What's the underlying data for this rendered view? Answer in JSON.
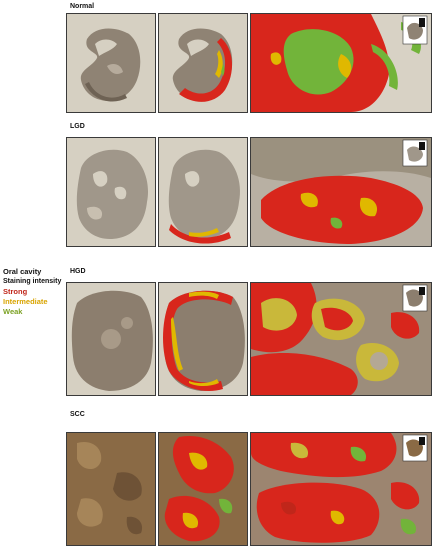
{
  "rows": [
    {
      "label": "Normal"
    },
    {
      "label": "LGD"
    },
    {
      "label": "HGD"
    },
    {
      "label": "SCC"
    }
  ],
  "legend": {
    "title": "Oral cavity",
    "heading": "Staining intensity",
    "strong": "Strong",
    "intermediate": "Intermediate",
    "weak": "Weak"
  },
  "colors": {
    "strong": "#d8261c",
    "intermediate": "#e0b800",
    "weak": "#72b43a",
    "tissue_light": "#9b8e7e",
    "tissue_brown": "#8a6a45",
    "background": "#d9d4c8"
  }
}
